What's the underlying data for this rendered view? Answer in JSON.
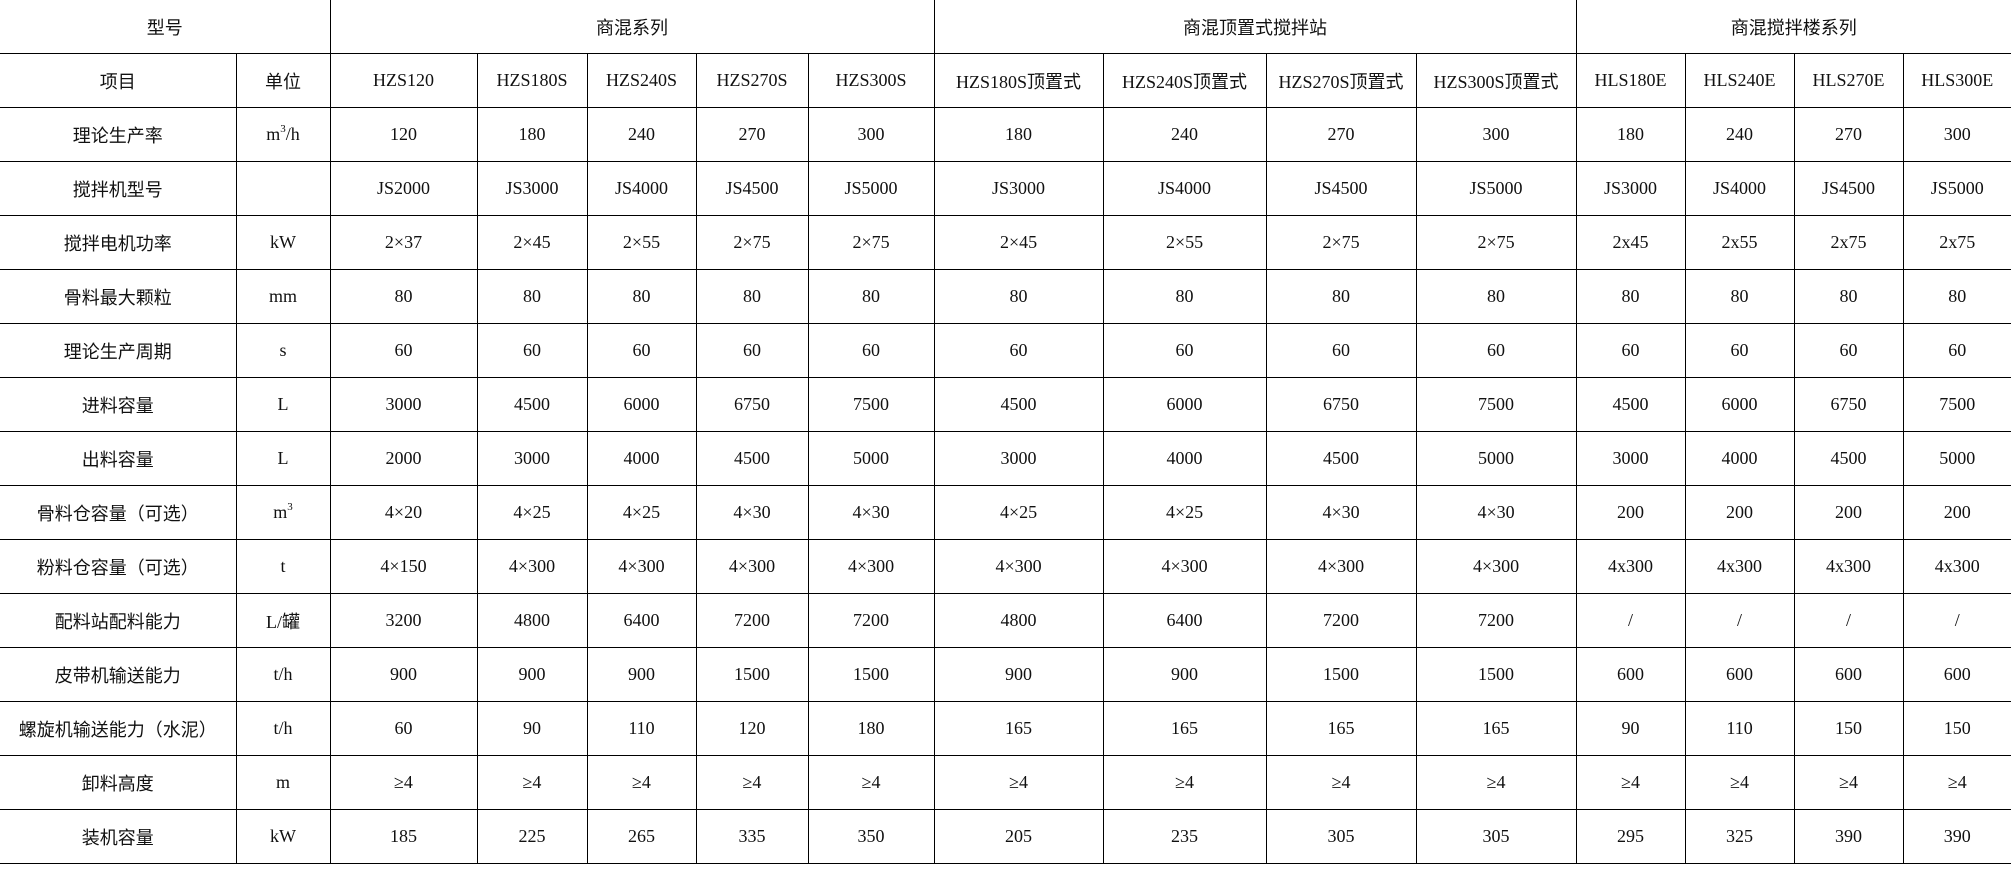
{
  "header": {
    "model_label": "型号",
    "groups": [
      "商混系列",
      "商混顶置式搅拌站",
      "商混搅拌楼系列"
    ],
    "item_label": "项目",
    "unit_label": "单位",
    "models": [
      "HZS120",
      "HZS180S",
      "HZS240S",
      "HZS270S",
      "HZS300S",
      "HZS180S顶置式",
      "HZS240S顶置式",
      "HZS270S顶置式",
      "HZS300S顶置式",
      "HLS180E",
      "HLS240E",
      "HLS270E",
      "HLS300E"
    ]
  },
  "rows": [
    {
      "item": "理论生产率",
      "unit": "m",
      "unit_sup": "3",
      "unit_suffix": "/h",
      "values": [
        "120",
        "180",
        "240",
        "270",
        "300",
        "180",
        "240",
        "270",
        "300",
        "180",
        "240",
        "270",
        "300"
      ]
    },
    {
      "item": "搅拌机型号",
      "unit": "",
      "values": [
        "JS2000",
        "JS3000",
        "JS4000",
        "JS4500",
        "JS5000",
        "JS3000",
        "JS4000",
        "JS4500",
        "JS5000",
        "JS3000",
        "JS4000",
        "JS4500",
        "JS5000"
      ]
    },
    {
      "item": "搅拌电机功率",
      "unit": "kW",
      "values": [
        "2×37",
        "2×45",
        "2×55",
        "2×75",
        "2×75",
        "2×45",
        "2×55",
        "2×75",
        "2×75",
        "2x45",
        "2x55",
        "2x75",
        "2x75"
      ]
    },
    {
      "item": "骨料最大颗粒",
      "unit": "mm",
      "values": [
        "80",
        "80",
        "80",
        "80",
        "80",
        "80",
        "80",
        "80",
        "80",
        "80",
        "80",
        "80",
        "80"
      ]
    },
    {
      "item": "理论生产周期",
      "unit": "s",
      "values": [
        "60",
        "60",
        "60",
        "60",
        "60",
        "60",
        "60",
        "60",
        "60",
        "60",
        "60",
        "60",
        "60"
      ]
    },
    {
      "item": "进料容量",
      "unit": "L",
      "values": [
        "3000",
        "4500",
        "6000",
        "6750",
        "7500",
        "4500",
        "6000",
        "6750",
        "7500",
        "4500",
        "6000",
        "6750",
        "7500"
      ]
    },
    {
      "item": "出料容量",
      "unit": "L",
      "values": [
        "2000",
        "3000",
        "4000",
        "4500",
        "5000",
        "3000",
        "4000",
        "4500",
        "5000",
        "3000",
        "4000",
        "4500",
        "5000"
      ]
    },
    {
      "item": "骨料仓容量（可选）",
      "unit": "m",
      "unit_sup": "3",
      "unit_suffix": "",
      "values": [
        "4×20",
        "4×25",
        "4×25",
        "4×30",
        "4×30",
        "4×25",
        "4×25",
        "4×30",
        "4×30",
        "200",
        "200",
        "200",
        "200"
      ]
    },
    {
      "item": "粉料仓容量（可选）",
      "unit": "t",
      "values": [
        "4×150",
        "4×300",
        "4×300",
        "4×300",
        "4×300",
        "4×300",
        "4×300",
        "4×300",
        "4×300",
        "4x300",
        "4x300",
        "4x300",
        "4x300"
      ]
    },
    {
      "item": "配料站配料能力",
      "unit": "L/罐",
      "values": [
        "3200",
        "4800",
        "6400",
        "7200",
        "7200",
        "4800",
        "6400",
        "7200",
        "7200",
        "/",
        "/",
        "/",
        "/"
      ]
    },
    {
      "item": "皮带机输送能力",
      "unit": "t/h",
      "values": [
        "900",
        "900",
        "900",
        "1500",
        "1500",
        "900",
        "900",
        "1500",
        "1500",
        "600",
        "600",
        "600",
        "600"
      ]
    },
    {
      "item": "螺旋机输送能力（水泥）",
      "unit": "t/h",
      "values": [
        "60",
        "90",
        "110",
        "120",
        "180",
        "165",
        "165",
        "165",
        "165",
        "90",
        "110",
        "150",
        "150"
      ]
    },
    {
      "item": "卸料高度",
      "unit": "m",
      "values": [
        "≥4",
        "≥4",
        "≥4",
        "≥4",
        "≥4",
        "≥4",
        "≥4",
        "≥4",
        "≥4",
        "≥4",
        "≥4",
        "≥4",
        "≥4"
      ]
    },
    {
      "item": "装机容量",
      "unit": "kW",
      "values": [
        "185",
        "225",
        "265",
        "335",
        "350",
        "205",
        "235",
        "305",
        "305",
        "295",
        "325",
        "390",
        "390"
      ]
    }
  ]
}
